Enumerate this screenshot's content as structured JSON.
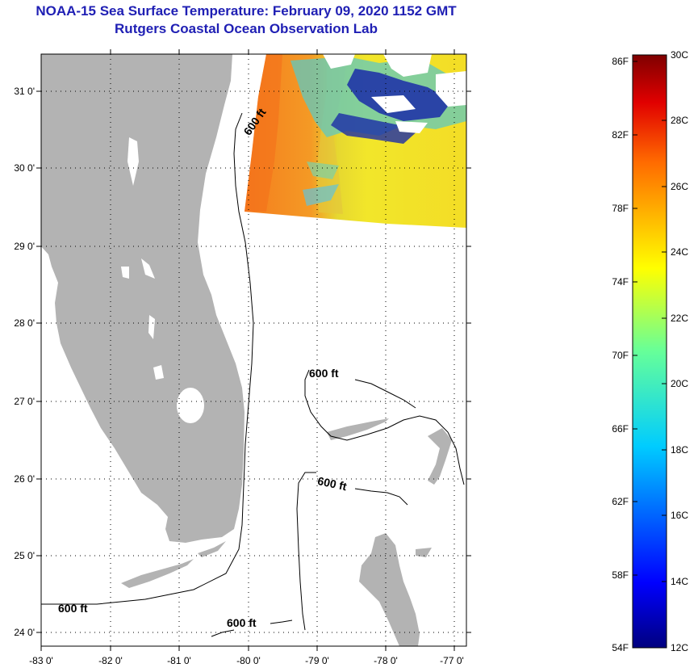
{
  "header": {
    "title": "NOAA-15 Sea Surface Temperature:  February 09, 2020 1152 GMT",
    "subtitle": "Rutgers Coastal Ocean Observation Lab"
  },
  "map": {
    "lat_ticks": [
      "31 0'",
      "30 0'",
      "29 0'",
      "28 0'",
      "27 0'",
      "26 0'",
      "25 0'",
      "24 0'"
    ],
    "lon_ticks": [
      "-83 0'",
      "-82 0'",
      "-81 0'",
      "-80 0'",
      "-79 0'",
      "-78 0'",
      "-77 0'"
    ],
    "contour_labels": [
      "600 ft",
      "600 ft",
      "600 ft",
      "600 ft",
      "600 ft"
    ],
    "land_color": "#b3b3b3"
  },
  "colorbar": {
    "fahrenheit_labels": [
      "86F",
      "82F",
      "78F",
      "74F",
      "70F",
      "66F",
      "62F",
      "58F",
      "54F"
    ],
    "celsius_labels": [
      "30C",
      "28C",
      "26C",
      "24C",
      "22C",
      "20C",
      "18C",
      "16C",
      "14C",
      "12C"
    ]
  },
  "colors": {
    "title": "#1f1fb4",
    "land": "#b3b3b3",
    "gridline": "#000000"
  }
}
